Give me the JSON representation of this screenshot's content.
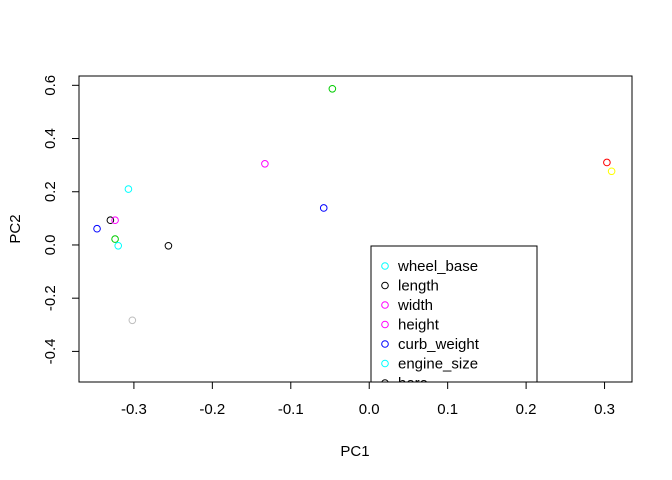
{
  "chart_data": {
    "type": "scatter",
    "title": "",
    "xlabel": "PC1",
    "ylabel": "PC2",
    "xlim": [
      -0.37,
      0.335
    ],
    "ylim": [
      -0.515,
      0.635
    ],
    "x_ticks": [
      -0.3,
      -0.2,
      -0.1,
      0.0,
      0.1,
      0.2,
      0.3
    ],
    "x_tick_labels": [
      "-0.3",
      "-0.2",
      "-0.1",
      "0.0",
      "0.1",
      "0.2",
      "0.3"
    ],
    "y_ticks": [
      -0.4,
      -0.2,
      0.0,
      0.2,
      0.4,
      0.6
    ],
    "y_tick_labels": [
      "-0.4",
      "-0.2",
      "0.0",
      "0.2",
      "0.4",
      "0.6"
    ],
    "grid": false,
    "legend_position": "bottom-right",
    "legend": [
      {
        "label": "wheel_base",
        "color": "#00ffff"
      },
      {
        "label": "length",
        "color": "#000000"
      },
      {
        "label": "width",
        "color": "#ff00ff"
      },
      {
        "label": "height",
        "color": "#ff00ff"
      },
      {
        "label": "curb_weight",
        "color": "#0000ff"
      },
      {
        "label": "engine_size",
        "color": "#00ffff"
      },
      {
        "label": "bore",
        "color": "#000000"
      }
    ],
    "points": [
      {
        "x": -0.307,
        "y": 0.21,
        "color": "#00ffff"
      },
      {
        "x": -0.33,
        "y": 0.093,
        "color": "#000000"
      },
      {
        "x": -0.324,
        "y": 0.093,
        "color": "#ff00ff"
      },
      {
        "x": -0.347,
        "y": 0.061,
        "color": "#0000ff"
      },
      {
        "x": -0.324,
        "y": 0.022,
        "color": "#00cc00"
      },
      {
        "x": -0.32,
        "y": -0.003,
        "color": "#00ffff"
      },
      {
        "x": -0.256,
        "y": -0.003,
        "color": "#000000"
      },
      {
        "x": -0.302,
        "y": -0.283,
        "color": "#bebebe"
      },
      {
        "x": -0.133,
        "y": 0.305,
        "color": "#ff00ff"
      },
      {
        "x": -0.058,
        "y": 0.139,
        "color": "#0000ff"
      },
      {
        "x": -0.047,
        "y": 0.587,
        "color": "#00cc00"
      },
      {
        "x": 0.303,
        "y": 0.31,
        "color": "#ff0000"
      },
      {
        "x": 0.309,
        "y": 0.277,
        "color": "#ffff00"
      }
    ]
  }
}
